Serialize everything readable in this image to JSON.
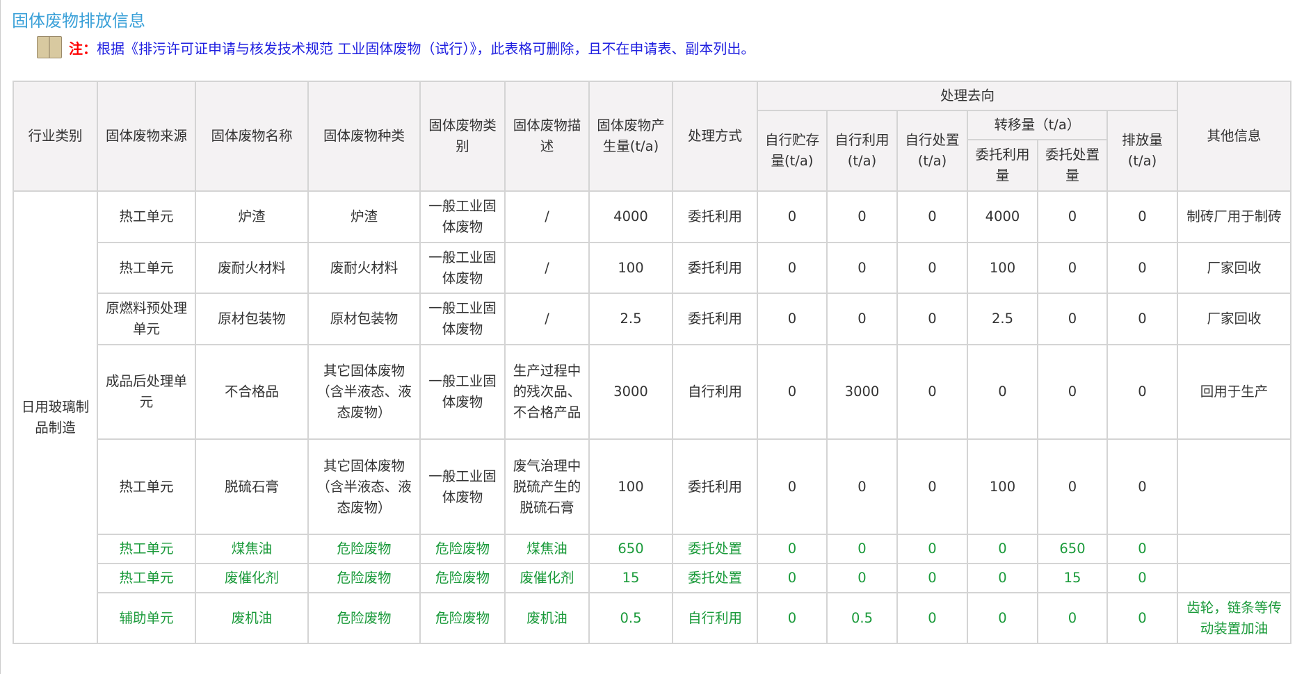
{
  "title": "固体废物排放信息",
  "note": {
    "label": "注：",
    "text": "根据《排污许可证申请与核发技术规范 工业固体废物（试行）》，此表格可删除，且不在申请表、副本列出。",
    "icon": "book-icon"
  },
  "colors": {
    "title": "#3aa0d8",
    "note": "#2020e0",
    "note_label": "#ff0000",
    "hazard_text": "#1a9a3a",
    "header_bg": "#f4f2f3"
  },
  "headers": {
    "industry": "行业类别",
    "source": "固体废物来源",
    "name": "固体废物名称",
    "kind": "固体废物种类",
    "category": "固体废物类别",
    "desc": "固体废物描述",
    "amount": "固体废物产生量(t/a)",
    "method": "处理方式",
    "direction": "处理去向",
    "self_store": "自行贮存量(t/a)",
    "self_use": "自行利用(t/a)",
    "self_dispose": "自行处置(t/a)",
    "transfer": "转移量（t/a）",
    "entrust_use": "委托利用量",
    "entrust_dispose": "委托处置量",
    "discharge": "排放量(t/a)",
    "other": "其他信息"
  },
  "industry": "日用玻璃制品制造",
  "rows": [
    [
      "热工单元",
      "炉渣",
      "炉渣",
      "一般工业固体废物",
      "/",
      "4000",
      "委托利用",
      "0",
      "0",
      "0",
      "4000",
      "0",
      "0",
      "制砖厂用于制砖"
    ],
    [
      "热工单元",
      "废耐火材料",
      "废耐火材料",
      "一般工业固体废物",
      "/",
      "100",
      "委托利用",
      "0",
      "0",
      "0",
      "100",
      "0",
      "0",
      "厂家回收"
    ],
    [
      "原燃料预处理单元",
      "原材包装物",
      "原材包装物",
      "一般工业固体废物",
      "/",
      "2.5",
      "委托利用",
      "0",
      "0",
      "0",
      "2.5",
      "0",
      "0",
      "厂家回收"
    ],
    [
      "成品后处理单元",
      "不合格品",
      "其它固体废物（含半液态、液态废物）",
      "一般工业固体废物",
      "生产过程中的残次品、不合格产品",
      "3000",
      "自行利用",
      "0",
      "3000",
      "0",
      "0",
      "0",
      "0",
      "回用于生产"
    ],
    [
      "热工单元",
      "脱硫石膏",
      "其它固体废物（含半液态、液态废物）",
      "一般工业固体废物",
      "废气治理中脱硫产生的脱硫石膏",
      "100",
      "委托利用",
      "0",
      "0",
      "0",
      "100",
      "0",
      "0",
      ""
    ],
    [
      "热工单元",
      "煤焦油",
      "危险废物",
      "危险废物",
      "煤焦油",
      "650",
      "委托处置",
      "0",
      "0",
      "0",
      "0",
      "650",
      "0",
      ""
    ],
    [
      "热工单元",
      "废催化剂",
      "危险废物",
      "危险废物",
      "废催化剂",
      "15",
      "委托处置",
      "0",
      "0",
      "0",
      "0",
      "15",
      "0",
      ""
    ],
    [
      "辅助单元",
      "废机油",
      "危险废物",
      "危险废物",
      "废机油",
      "0.5",
      "自行利用",
      "0",
      "0.5",
      "0",
      "0",
      "0",
      "0",
      "齿轮，链条等传动装置加油"
    ]
  ]
}
